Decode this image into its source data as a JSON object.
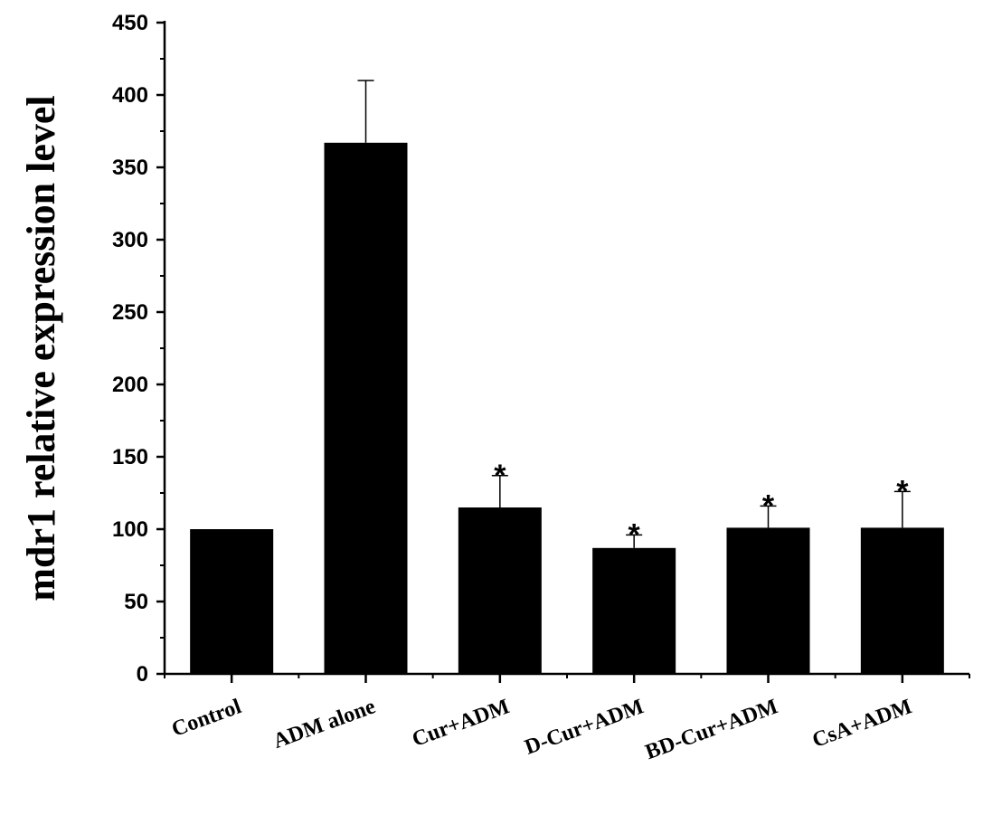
{
  "chart_data": {
    "type": "bar",
    "title": "",
    "xlabel": "",
    "ylabel": "mdr1 relative expression level",
    "ylim": [
      0,
      450
    ],
    "yticks": [
      0,
      50,
      100,
      150,
      200,
      250,
      300,
      350,
      400,
      450
    ],
    "categories": [
      "Control",
      "ADM alone",
      "Cur+ADM",
      "D-Cur+ADM",
      "BD-Cur+ADM",
      "CsA+ADM"
    ],
    "values": [
      100,
      367,
      115,
      87,
      101,
      101
    ],
    "error_upper": [
      0,
      43,
      22,
      9,
      15,
      25
    ],
    "annotations": [
      "",
      "",
      "*",
      "*",
      "*",
      "*"
    ],
    "bar_color": "#000000",
    "grid": false,
    "legend": "none"
  }
}
